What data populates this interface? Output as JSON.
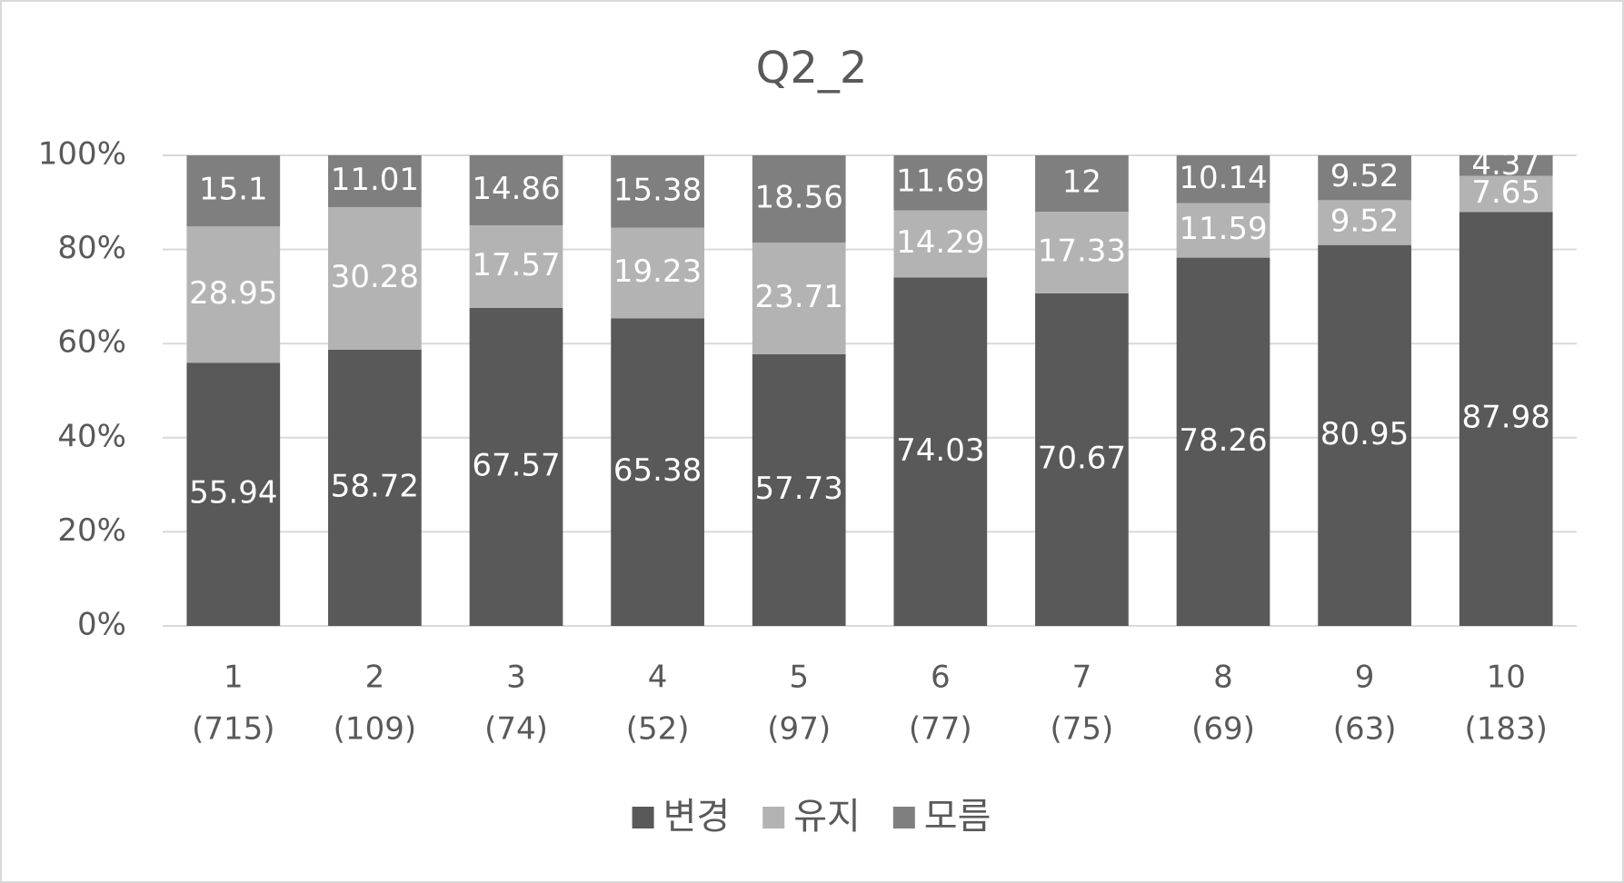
{
  "chart_data": {
    "type": "stacked_bar",
    "title": "Q2_2",
    "categories": [
      [
        "1",
        "(715)"
      ],
      [
        "2",
        "(109)"
      ],
      [
        "3",
        "(74)"
      ],
      [
        "4",
        "(52)"
      ],
      [
        "5",
        "(97)"
      ],
      [
        "6",
        "(77)"
      ],
      [
        "7",
        "(75)"
      ],
      [
        "8",
        "(69)"
      ],
      [
        "9",
        "(63)"
      ],
      [
        "10",
        "(183)"
      ]
    ],
    "series": [
      {
        "name": "변경",
        "color": "#595959",
        "values": [
          55.94,
          58.72,
          67.57,
          65.38,
          57.73,
          74.03,
          70.67,
          78.26,
          80.95,
          87.98
        ]
      },
      {
        "name": "유지",
        "color": "#b3b3b3",
        "values": [
          28.95,
          30.28,
          17.57,
          19.23,
          23.71,
          14.29,
          17.33,
          11.59,
          9.52,
          7.65
        ]
      },
      {
        "name": "모름",
        "color": "#7f7f7f",
        "values": [
          15.1,
          11.01,
          14.86,
          15.38,
          18.56,
          11.69,
          12,
          10.14,
          9.52,
          4.37
        ]
      }
    ],
    "ylim": [
      0,
      100
    ],
    "yticks": [
      {
        "value": 0,
        "label": "0%"
      },
      {
        "value": 20,
        "label": "20%"
      },
      {
        "value": 40,
        "label": "40%"
      },
      {
        "value": 60,
        "label": "60%"
      },
      {
        "value": 80,
        "label": "80%"
      },
      {
        "value": 100,
        "label": "100%"
      }
    ],
    "grid": true,
    "legend": "bottom"
  }
}
